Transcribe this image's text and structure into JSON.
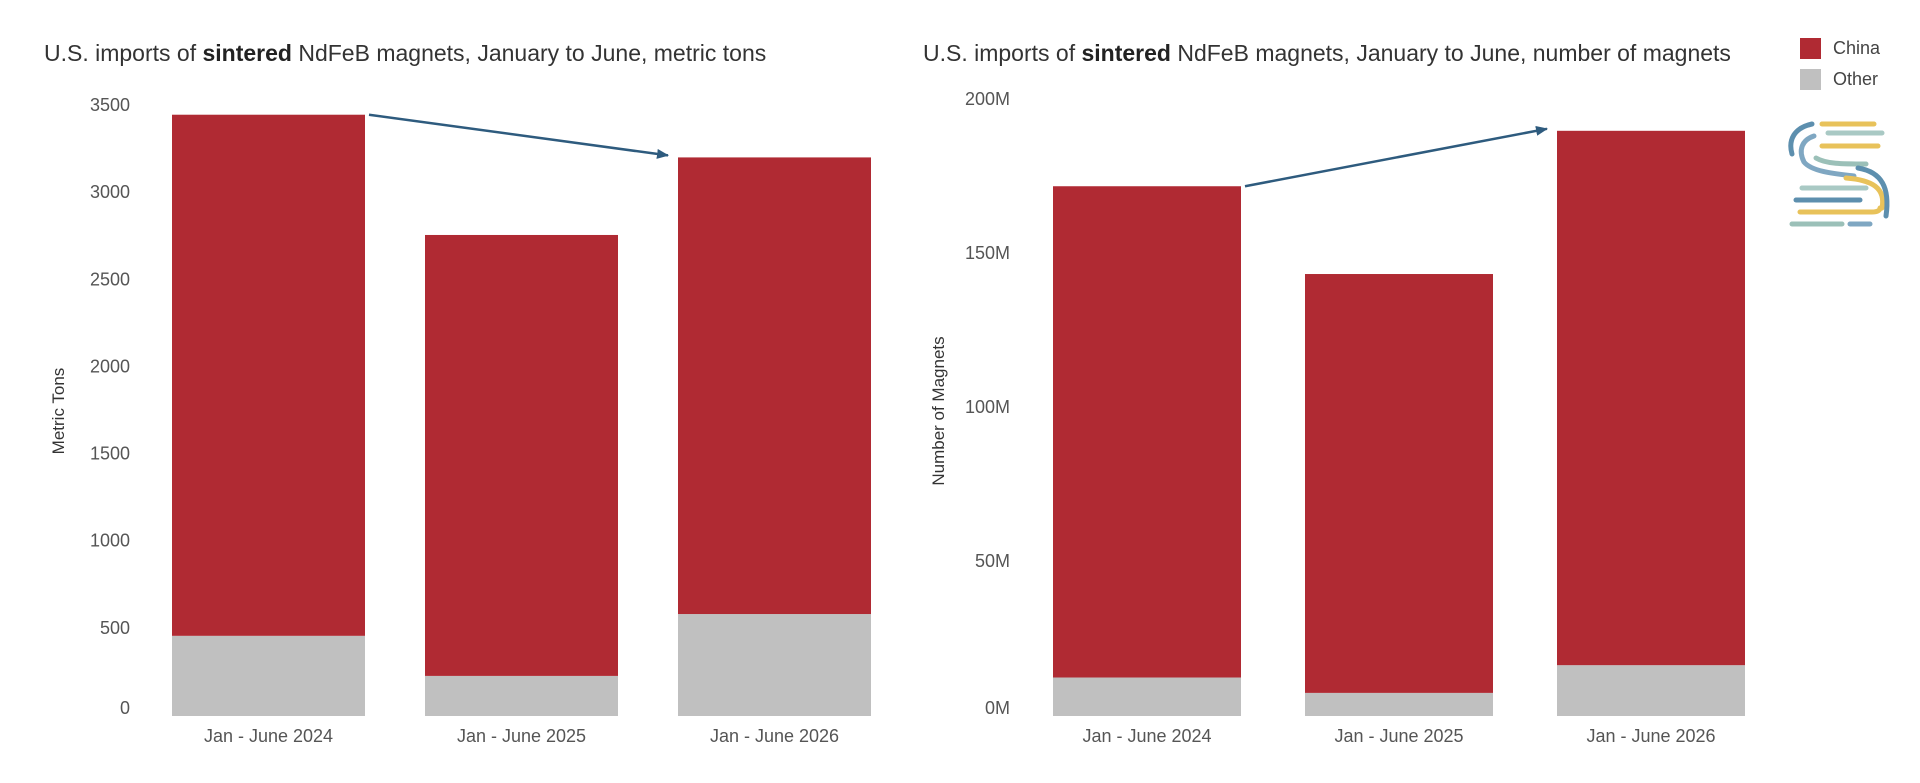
{
  "colors": {
    "China": "#B02A33",
    "Other": "#C0C0C0",
    "arrow": "#2E5B7E"
  },
  "legend": [
    {
      "label": "China",
      "color": "#B02A33"
    },
    {
      "label": "Other",
      "color": "#C0C0C0"
    }
  ],
  "titles": {
    "left": {
      "pre": "U.S. imports of ",
      "bold": "sintered",
      "post": " NdFeB magnets, January to June, metric tons"
    },
    "right": {
      "pre": "U.S. imports of ",
      "bold": "sintered",
      "post": " NdFeB magnets, January to June, number of magnets"
    }
  },
  "chart_data": [
    {
      "type": "bar",
      "stacked": true,
      "title": "U.S. imports of sintered NdFeB magnets, January to June, metric tons",
      "xlabel": "",
      "ylabel": "Metric Tons",
      "categories": [
        "Jan - June 2024",
        "Jan - June 2025",
        "Jan - June 2026"
      ],
      "series": [
        {
          "name": "Other",
          "values": [
            460,
            230,
            585
          ]
        },
        {
          "name": "China",
          "values": [
            2990,
            2530,
            2620
          ]
        }
      ],
      "ylim": [
        0,
        3500
      ],
      "yticks": [
        0,
        500,
        1000,
        1500,
        2000,
        2500,
        3000,
        3500
      ],
      "ytick_labels": [
        "0",
        "500",
        "1000",
        "1500",
        "2000",
        "2500",
        "3000",
        "3500"
      ],
      "arrow": {
        "from": "Jan - June 2024",
        "to": "Jan - June 2026"
      },
      "grid": false,
      "legend": "top-right"
    },
    {
      "type": "bar",
      "stacked": true,
      "title": "U.S. imports of sintered NdFeB magnets, January to June, number of magnets",
      "xlabel": "",
      "ylabel": "Number of Magnets",
      "categories": [
        "Jan - June 2024",
        "Jan - June 2025",
        "Jan - June 2026"
      ],
      "series": [
        {
          "name": "Other",
          "values": [
            12500000,
            7500000,
            16500000
          ]
        },
        {
          "name": "China",
          "values": [
            159500000,
            136000000,
            173500000
          ]
        }
      ],
      "ylim": [
        0,
        200000000
      ],
      "yticks": [
        0,
        50000000,
        100000000,
        150000000,
        200000000
      ],
      "ytick_labels": [
        "0M",
        "50M",
        "100M",
        "150M",
        "200M"
      ],
      "arrow": {
        "from": "Jan - June 2024",
        "to": "Jan - June 2026"
      },
      "grid": false,
      "legend": "top-right"
    }
  ]
}
